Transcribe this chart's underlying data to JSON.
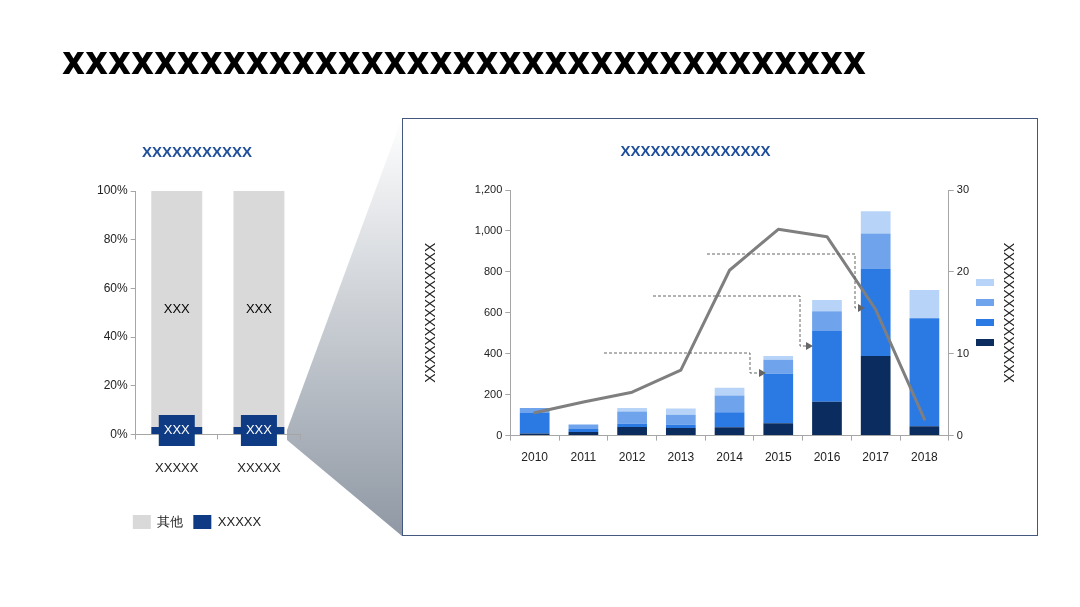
{
  "chart_data": [
    {
      "type": "bar",
      "title": "XXXXXXXXXXX",
      "annotations": [
        "xxxxxxxxxxxxxxxxxxxxxxxxxxxxxxxxxxx"
      ],
      "categories": [
        "XXXXX",
        "XXXXX"
      ],
      "stacked": true,
      "legend": "bottom",
      "series": [
        {
          "name": "XXXXX",
          "color": "#0e3b84",
          "values": [
            3,
            3
          ],
          "value_labels": [
            "XXX",
            "XXX"
          ]
        },
        {
          "name": "其他",
          "color": "#d9d9d9",
          "values": [
            97,
            97
          ],
          "value_labels": [
            "XXX",
            "XXX"
          ]
        }
      ],
      "ylim": [
        0,
        100
      ],
      "yticks": [
        {
          "value": 0,
          "label": "0%"
        },
        {
          "value": 20,
          "label": "20%"
        },
        {
          "value": 40,
          "label": "40%"
        },
        {
          "value": 60,
          "label": "60%"
        },
        {
          "value": 80,
          "label": "80%"
        },
        {
          "value": 100,
          "label": "100%"
        }
      ]
    },
    {
      "type": "bar",
      "title": "XXXXXXXXXXXXXXX",
      "ylabel": "XXXXXXXXXXXXXXX",
      "y2label": "XXXXXXXXXXXXXXX",
      "categories": [
        "2010",
        "2011",
        "2012",
        "2013",
        "2014",
        "2015",
        "2016",
        "2017",
        "2018"
      ],
      "stacked": true,
      "series": [
        {
          "color": "#0b2c5e",
          "values": [
            10,
            18,
            42,
            37,
            41,
            60,
            165,
            389,
            46
          ]
        },
        {
          "color": "#2b7ae4",
          "values": [
            101,
            14,
            16,
            16,
            73,
            242,
            346,
            428,
            527
          ]
        },
        {
          "color": "#6fa4ec",
          "values": [
            24,
            22,
            60,
            49,
            82,
            69,
            96,
            171,
            0
          ]
        },
        {
          "color": "#b7d4f8",
          "values": [
            0,
            0,
            17,
            30,
            38,
            18,
            56,
            108,
            139
          ]
        },
        {
          "type": "line",
          "axis": "y2",
          "color": "#7f7f7f",
          "values": [
            2.8,
            4.1,
            5.3,
            8.0,
            20.2,
            25.2,
            24.3,
            15.4,
            2.0
          ]
        }
      ],
      "ylim": [
        0,
        1200
      ],
      "yticks": [
        0,
        200,
        400,
        600,
        800,
        {
          "value": 1000,
          "label": "1,000"
        },
        {
          "value": 1200,
          "label": "1,200"
        }
      ],
      "y2lim": [
        0,
        30
      ],
      "y2ticks": [
        0,
        10,
        20,
        30
      ]
    }
  ]
}
